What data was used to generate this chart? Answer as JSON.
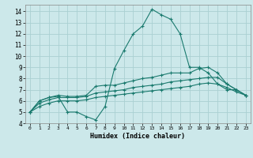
{
  "xlabel": "Humidex (Indice chaleur)",
  "background_color": "#cce8ea",
  "grid_color": "#aad0d2",
  "line_color": "#1a7a6e",
  "xlim": [
    -0.5,
    23.5
  ],
  "ylim": [
    4,
    14.6
  ],
  "yticks": [
    4,
    5,
    6,
    7,
    8,
    9,
    10,
    11,
    12,
    13,
    14
  ],
  "xticks": [
    0,
    1,
    2,
    3,
    4,
    5,
    6,
    7,
    8,
    9,
    10,
    11,
    12,
    13,
    14,
    15,
    16,
    17,
    18,
    19,
    20,
    21,
    22,
    23
  ],
  "xtick_labels": [
    "0",
    "1",
    "2",
    "3",
    "4",
    "5",
    "6",
    "7",
    "8",
    "9",
    "10",
    "11",
    "12",
    "13",
    "14",
    "15",
    "16",
    "17",
    "18",
    "19",
    "20",
    "21",
    "22",
    "23"
  ],
  "series": [
    [
      5.0,
      6.0,
      6.3,
      6.4,
      5.0,
      5.0,
      4.6,
      4.3,
      5.5,
      8.9,
      10.5,
      12.0,
      12.7,
      14.2,
      13.7,
      13.3,
      12.0,
      9.0,
      9.0,
      8.5,
      7.5,
      7.0,
      7.0,
      6.5
    ],
    [
      5.0,
      6.0,
      6.3,
      6.5,
      6.4,
      6.4,
      6.5,
      7.3,
      7.4,
      7.4,
      7.6,
      7.8,
      8.0,
      8.1,
      8.3,
      8.5,
      8.5,
      8.5,
      8.9,
      9.0,
      8.5,
      7.5,
      7.0,
      6.5
    ],
    [
      5.0,
      5.8,
      6.1,
      6.3,
      6.3,
      6.3,
      6.4,
      6.7,
      6.8,
      6.9,
      7.0,
      7.2,
      7.3,
      7.4,
      7.5,
      7.7,
      7.8,
      7.9,
      8.0,
      8.1,
      8.1,
      7.5,
      7.0,
      6.5
    ],
    [
      5.0,
      5.5,
      5.8,
      6.0,
      6.0,
      6.0,
      6.1,
      6.3,
      6.4,
      6.5,
      6.6,
      6.7,
      6.8,
      6.9,
      7.0,
      7.1,
      7.2,
      7.3,
      7.5,
      7.6,
      7.5,
      7.2,
      6.8,
      6.5
    ]
  ]
}
